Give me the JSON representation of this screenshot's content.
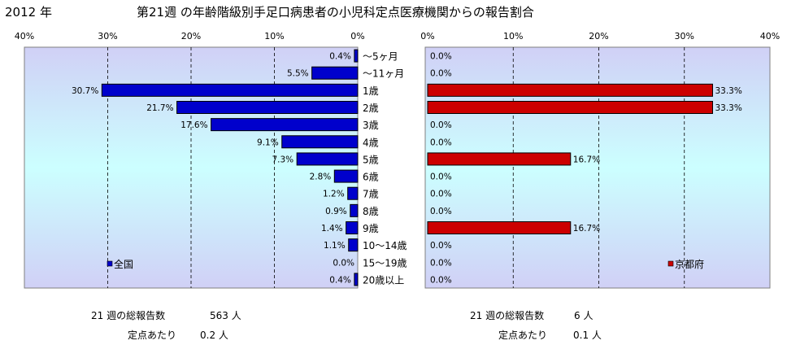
{
  "header": {
    "year": "2012 年",
    "title": "第21週 の年齢階級別手足口病患者の小児科定点医療機関からの報告割合"
  },
  "chart_data": [
    {
      "type": "bar",
      "orientation": "horizontal",
      "direction": "right-to-left",
      "legend": "全国",
      "legend_placement": "bottom-left",
      "color": "#0000CC",
      "xlim": [
        0,
        40
      ],
      "ticks": [
        "0%",
        "10%",
        "20%",
        "30%",
        "40%"
      ],
      "grid": true,
      "categories": [
        "～5ヶ月",
        "～11ヶ月",
        "1歳",
        "2歳",
        "3歳",
        "4歳",
        "5歳",
        "6歳",
        "7歳",
        "8歳",
        "9歳",
        "10～14歳",
        "15～19歳",
        "20歳以上"
      ],
      "values": [
        0.4,
        5.5,
        30.7,
        21.7,
        17.6,
        9.1,
        7.3,
        2.8,
        1.2,
        0.9,
        1.4,
        1.1,
        0.0,
        0.4
      ],
      "labels": [
        "0.4%",
        "5.5%",
        "30.7%",
        "21.7%",
        "17.6%",
        "9.1%",
        "7.3%",
        "2.8%",
        "1.2%",
        "0.9%",
        "1.4%",
        "1.1%",
        "0.0%",
        "0.4%"
      ]
    },
    {
      "type": "bar",
      "orientation": "horizontal",
      "direction": "left-to-right",
      "legend": "京都府",
      "legend_placement": "bottom-right",
      "color": "#CC0000",
      "xlim": [
        0,
        40
      ],
      "ticks": [
        "0%",
        "10%",
        "20%",
        "30%",
        "40%"
      ],
      "grid": true,
      "categories": [
        "～5ヶ月",
        "～11ヶ月",
        "1歳",
        "2歳",
        "3歳",
        "4歳",
        "5歳",
        "6歳",
        "7歳",
        "8歳",
        "9歳",
        "10～14歳",
        "15～19歳",
        "20歳以上"
      ],
      "values": [
        0.0,
        0.0,
        33.3,
        33.3,
        0.0,
        0.0,
        16.7,
        0.0,
        0.0,
        0.0,
        16.7,
        0.0,
        0.0,
        0.0
      ],
      "labels": [
        "0.0%",
        "0.0%",
        "33.3%",
        "33.3%",
        "0.0%",
        "0.0%",
        "16.7%",
        "0.0%",
        "0.0%",
        "0.0%",
        "16.7%",
        "0.0%",
        "0.0%",
        "0.0%"
      ]
    }
  ],
  "stats": {
    "national_total_label": "21 週の総報告数",
    "national_total_value": "563 人",
    "national_per_label": "定点あたり",
    "national_per_value": "0.2 人",
    "kyoto_total_label": "21 週の総報告数",
    "kyoto_total_value": "6 人",
    "kyoto_per_label": "定点あたり",
    "kyoto_per_value": "0.1 人"
  }
}
